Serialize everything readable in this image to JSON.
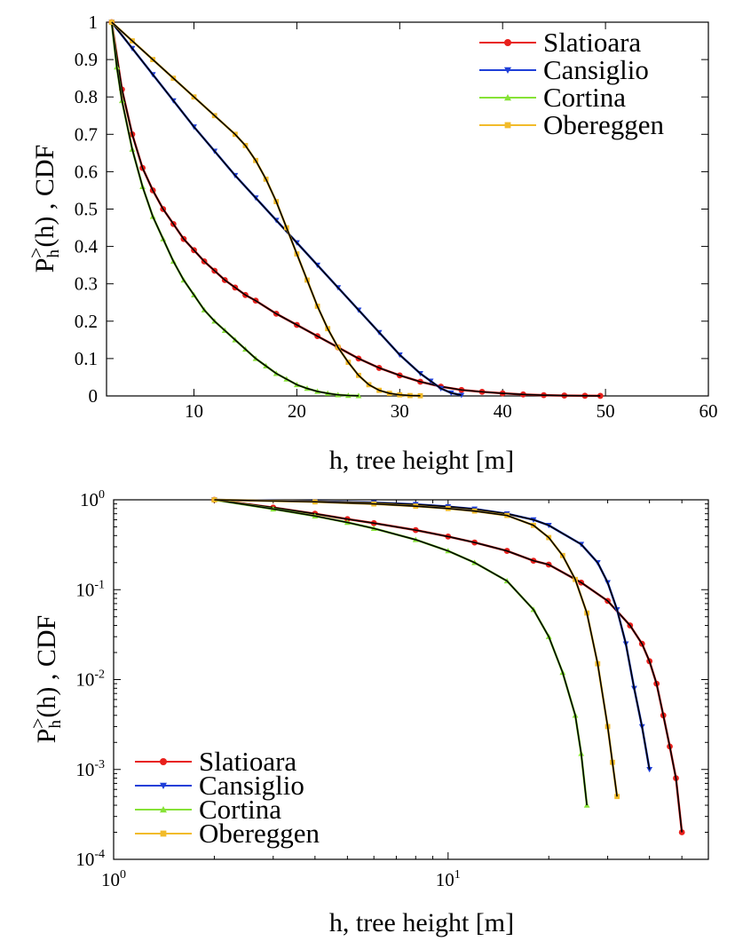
{
  "chart_data": [
    {
      "type": "line",
      "xlabel": "h, tree height [m]",
      "ylabel": {
        "main": "P",
        "sub": "h",
        "sup": ">",
        "rest": "(h) ,   CDF"
      },
      "xscale": "linear",
      "yscale": "linear",
      "xlim": [
        1.5,
        60
      ],
      "ylim": [
        0,
        1
      ],
      "xticks": [
        {
          "v": 10,
          "label": "10"
        },
        {
          "v": 20,
          "label": "20"
        },
        {
          "v": 30,
          "label": "30"
        },
        {
          "v": 40,
          "label": "40"
        },
        {
          "v": 50,
          "label": "50"
        },
        {
          "v": 60,
          "label": "60"
        }
      ],
      "yticks": [
        {
          "v": 0,
          "label": "0"
        },
        {
          "v": 0.1,
          "label": "0.1"
        },
        {
          "v": 0.2,
          "label": "0.2"
        },
        {
          "v": 0.3,
          "label": "0.3"
        },
        {
          "v": 0.4,
          "label": "0.4"
        },
        {
          "v": 0.5,
          "label": "0.5"
        },
        {
          "v": 0.6,
          "label": "0.6"
        },
        {
          "v": 0.7,
          "label": "0.7"
        },
        {
          "v": 0.8,
          "label": "0.8"
        },
        {
          "v": 0.9,
          "label": "0.9"
        },
        {
          "v": 1,
          "label": "1"
        }
      ],
      "legend_position": "top-right",
      "series": [
        {
          "name": "Slatioara",
          "color": "#e8201c",
          "marker": "circle",
          "x": [
            2,
            3,
            4,
            5,
            6,
            7,
            8,
            9,
            10,
            11,
            12,
            13,
            14,
            15,
            16,
            18,
            20,
            22,
            24,
            26,
            28,
            30,
            32,
            34,
            36,
            38,
            40,
            42,
            44,
            46,
            48,
            49.5
          ],
          "y": [
            1,
            0.82,
            0.7,
            0.61,
            0.55,
            0.5,
            0.46,
            0.42,
            0.39,
            0.36,
            0.335,
            0.31,
            0.29,
            0.27,
            0.255,
            0.22,
            0.19,
            0.16,
            0.13,
            0.1,
            0.075,
            0.055,
            0.038,
            0.025,
            0.016,
            0.011,
            0.007,
            0.004,
            0.002,
            0.001,
            0.0005,
            0.0002
          ]
        },
        {
          "name": "Cansiglio",
          "color": "#1f3fd8",
          "marker": "triangle-down",
          "x": [
            2,
            4,
            6,
            8,
            10,
            12,
            14,
            16,
            18,
            20,
            22,
            24,
            26,
            28,
            30,
            32,
            33,
            34,
            35,
            36
          ],
          "y": [
            1,
            0.93,
            0.86,
            0.79,
            0.72,
            0.655,
            0.59,
            0.53,
            0.47,
            0.41,
            0.35,
            0.29,
            0.23,
            0.17,
            0.11,
            0.06,
            0.04,
            0.02,
            0.008,
            0.002
          ]
        },
        {
          "name": "Cortina",
          "color": "#86e236",
          "marker": "triangle-up",
          "x": [
            2,
            2.5,
            3,
            4,
            5,
            6,
            7,
            8,
            9,
            10,
            11,
            12,
            13,
            14,
            15,
            16,
            17,
            18,
            19,
            20,
            21,
            22,
            23,
            24,
            25,
            26
          ],
          "y": [
            1,
            0.88,
            0.79,
            0.66,
            0.56,
            0.48,
            0.42,
            0.36,
            0.31,
            0.27,
            0.23,
            0.2,
            0.175,
            0.15,
            0.125,
            0.1,
            0.08,
            0.06,
            0.045,
            0.03,
            0.02,
            0.012,
            0.007,
            0.003,
            0.0012,
            0.0004
          ]
        },
        {
          "name": "Obereggen",
          "color": "#f2bb2a",
          "marker": "square",
          "x": [
            2,
            4,
            6,
            8,
            10,
            12,
            14,
            15,
            16,
            17,
            18,
            19,
            20,
            21,
            22,
            23,
            24,
            25,
            26,
            27,
            28,
            29,
            30,
            31,
            32
          ],
          "y": [
            1,
            0.95,
            0.9,
            0.85,
            0.8,
            0.75,
            0.7,
            0.67,
            0.63,
            0.58,
            0.52,
            0.45,
            0.38,
            0.31,
            0.24,
            0.18,
            0.13,
            0.09,
            0.055,
            0.03,
            0.015,
            0.007,
            0.003,
            0.001,
            0.0005
          ]
        }
      ]
    },
    {
      "type": "line",
      "xlabel": "h, tree height [m]",
      "ylabel": {
        "main": "P",
        "sub": "h",
        "sup": ">",
        "rest": "(h) ,   CDF"
      },
      "xscale": "log",
      "yscale": "log",
      "xlim": [
        1,
        60
      ],
      "ylim": [
        0.0001,
        1
      ],
      "xticks": [
        {
          "v": 1,
          "base": "10",
          "exp": "0"
        },
        {
          "v": 10,
          "base": "10",
          "exp": "1"
        }
      ],
      "yticks": [
        {
          "v": 1,
          "base": "10",
          "exp": "0"
        },
        {
          "v": 0.1,
          "base": "10",
          "exp": "-1"
        },
        {
          "v": 0.01,
          "base": "10",
          "exp": "-2"
        },
        {
          "v": 0.001,
          "base": "10",
          "exp": "-3"
        },
        {
          "v": 0.0001,
          "base": "10",
          "exp": "-4"
        }
      ],
      "legend_position": "bottom-left",
      "series": [
        {
          "name": "Slatioara",
          "color": "#e8201c",
          "marker": "circle",
          "x": [
            2,
            3,
            4,
            5,
            6,
            8,
            10,
            12,
            15,
            18,
            20,
            25,
            30,
            35,
            38,
            40,
            42,
            44,
            46,
            48,
            50
          ],
          "y": [
            1,
            0.82,
            0.7,
            0.61,
            0.55,
            0.46,
            0.39,
            0.335,
            0.27,
            0.21,
            0.19,
            0.12,
            0.075,
            0.04,
            0.025,
            0.016,
            0.009,
            0.004,
            0.0018,
            0.0008,
            0.0002
          ]
        },
        {
          "name": "Cansiglio",
          "color": "#1f3fd8",
          "marker": "triangle-down",
          "x": [
            2,
            4,
            6,
            8,
            10,
            12,
            15,
            18,
            20,
            25,
            28,
            30,
            32,
            34,
            36,
            38,
            40
          ],
          "y": [
            1,
            0.96,
            0.93,
            0.89,
            0.84,
            0.79,
            0.7,
            0.6,
            0.52,
            0.32,
            0.2,
            0.12,
            0.06,
            0.025,
            0.008,
            0.003,
            0.001
          ]
        },
        {
          "name": "Cortina",
          "color": "#86e236",
          "marker": "triangle-up",
          "x": [
            2,
            3,
            4,
            5,
            6,
            8,
            10,
            12,
            15,
            18,
            20,
            22,
            24,
            25,
            26
          ],
          "y": [
            1,
            0.79,
            0.66,
            0.56,
            0.48,
            0.36,
            0.27,
            0.2,
            0.125,
            0.06,
            0.03,
            0.012,
            0.004,
            0.0015,
            0.0004
          ]
        },
        {
          "name": "Obereggen",
          "color": "#f2bb2a",
          "marker": "square",
          "x": [
            2,
            4,
            6,
            8,
            10,
            12,
            15,
            18,
            20,
            22,
            24,
            26,
            28,
            30,
            31,
            32
          ],
          "y": [
            1,
            0.95,
            0.9,
            0.85,
            0.8,
            0.75,
            0.67,
            0.52,
            0.38,
            0.24,
            0.13,
            0.055,
            0.015,
            0.003,
            0.0012,
            0.0005
          ]
        }
      ]
    }
  ]
}
